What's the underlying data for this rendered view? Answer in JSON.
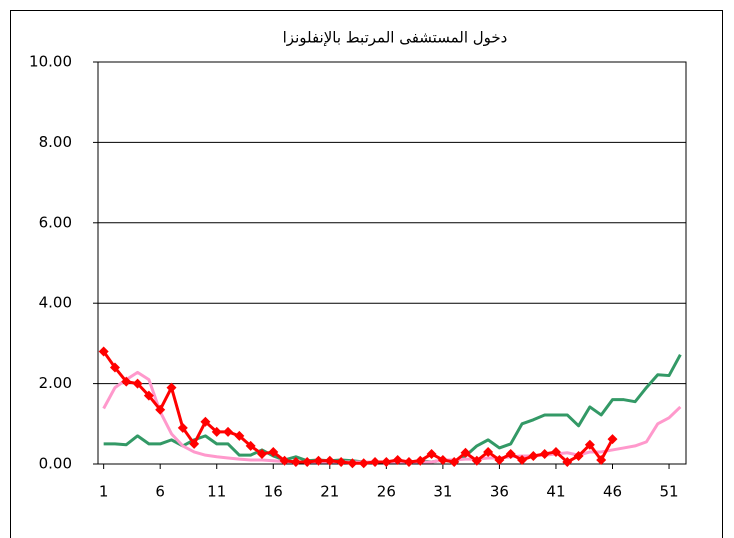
{
  "chart_data": {
    "type": "line",
    "title": "دخول المستشفى المرتبط بالإنفلونزا",
    "x": [
      1,
      2,
      3,
      4,
      5,
      6,
      7,
      8,
      9,
      10,
      11,
      12,
      13,
      14,
      15,
      16,
      17,
      18,
      19,
      20,
      21,
      22,
      23,
      24,
      25,
      26,
      27,
      28,
      29,
      30,
      31,
      32,
      33,
      34,
      35,
      36,
      37,
      38,
      39,
      40,
      41,
      42,
      43,
      44,
      45,
      46,
      47,
      48,
      49,
      50,
      51,
      52
    ],
    "xlim": [
      0.5,
      52.5
    ],
    "xticks": [
      1,
      6,
      11,
      16,
      21,
      26,
      31,
      36,
      41,
      46,
      51
    ],
    "ylim": [
      0,
      10
    ],
    "yticks": [
      {
        "value": 0,
        "label": "0.00"
      },
      {
        "value": 2,
        "label": "2.00"
      },
      {
        "value": 4,
        "label": "4.00"
      },
      {
        "value": 6,
        "label": "6.00"
      },
      {
        "value": 8,
        "label": "8.00"
      },
      {
        "value": 10,
        "label": "10.00"
      }
    ],
    "grid": true,
    "series": [
      {
        "color": "#339966",
        "values": [
          0.5,
          0.5,
          0.48,
          0.7,
          0.5,
          0.5,
          0.6,
          0.45,
          0.6,
          0.7,
          0.5,
          0.5,
          0.22,
          0.22,
          0.35,
          0.2,
          0.1,
          0.18,
          0.08,
          0.1,
          0.08,
          0.1,
          0.08,
          0.05,
          0.05,
          0.05,
          0.05,
          0.05,
          0.08,
          0.05,
          0.1,
          0.05,
          0.2,
          0.45,
          0.6,
          0.4,
          0.5,
          1.0,
          1.1,
          1.22,
          1.22,
          1.22,
          0.95,
          1.42,
          1.22,
          1.6,
          1.6,
          1.55,
          1.9,
          2.22,
          2.2,
          2.72
        ]
      },
      {
        "color": "#ff99cc",
        "values": [
          1.38,
          1.9,
          2.1,
          2.28,
          2.1,
          1.3,
          0.75,
          0.45,
          0.3,
          0.22,
          0.18,
          0.15,
          0.12,
          0.1,
          0.1,
          0.08,
          0.06,
          0.05,
          0.05,
          0.05,
          0.05,
          0.05,
          0.05,
          0.05,
          0.05,
          0.05,
          0.05,
          0.05,
          0.05,
          0.05,
          0.1,
          0.1,
          0.12,
          0.12,
          0.15,
          0.15,
          0.18,
          0.2,
          0.2,
          0.22,
          0.25,
          0.28,
          0.22,
          0.3,
          0.3,
          0.35,
          0.4,
          0.45,
          0.55,
          1.0,
          1.15,
          1.42
        ]
      },
      {
        "color": "#ff0000",
        "marker": "diamond",
        "values": [
          2.8,
          2.4,
          2.05,
          2.0,
          1.7,
          1.35,
          1.9,
          0.9,
          0.5,
          1.05,
          0.8,
          0.8,
          0.7,
          0.45,
          0.25,
          0.3,
          0.08,
          0.05,
          0.05,
          0.08,
          0.08,
          0.05,
          0.02,
          0.02,
          0.05,
          0.05,
          0.1,
          0.05,
          0.08,
          0.25,
          0.1,
          0.05,
          0.28,
          0.08,
          0.3,
          0.1,
          0.25,
          0.1,
          0.2,
          0.25,
          0.3,
          0.05,
          0.2,
          0.48,
          0.1,
          0.62,
          null,
          null,
          null,
          null,
          null,
          null
        ]
      }
    ]
  }
}
